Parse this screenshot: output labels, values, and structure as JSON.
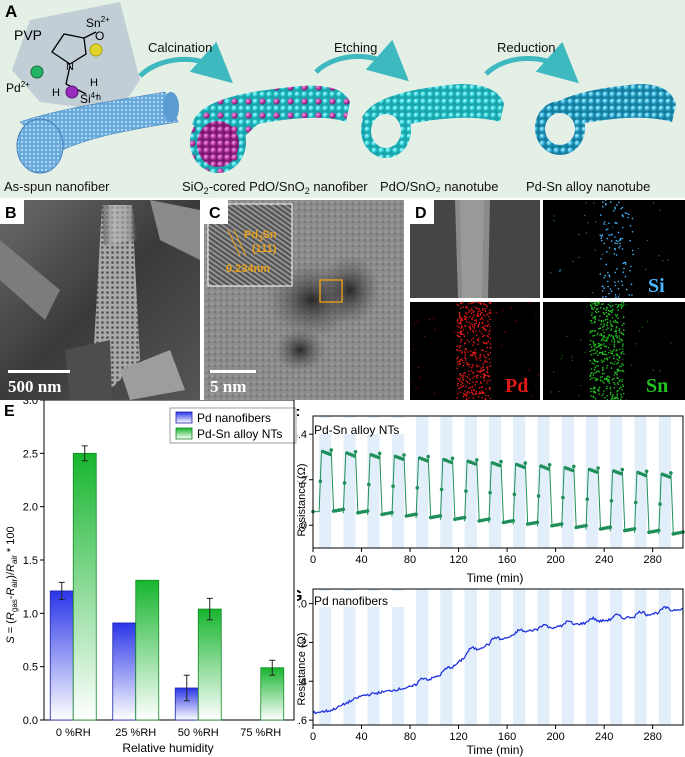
{
  "panel_a": {
    "letter": "A",
    "stages": [
      {
        "label": "As-spun nanofiber"
      },
      {
        "label_pre": "SiO",
        "sub1": "2",
        "label_mid": "-cored PdO/SnO",
        "sub2": "2",
        "label_post": " nanofiber"
      },
      {
        "label": "PdO/SnO₂ nanotube"
      },
      {
        "label": "Pd-Sn alloy nanotube"
      }
    ],
    "arrows": [
      "Calcination",
      "Etching",
      "Reduction"
    ],
    "inset": {
      "pvp": "PVP",
      "sn": "Sn",
      "sn_charge": "2+",
      "pd": "Pd",
      "pd_charge": "2+",
      "si": "Si",
      "si_charge": "4+",
      "o": "O",
      "n": "N",
      "h1": "H",
      "h2": "H",
      "nsub": "n"
    },
    "colors": {
      "bg": "#e4f0e7",
      "fiber_blue": "#5aa6dc",
      "cyan": "#2fd4d8",
      "magenta": "#b03aa6",
      "arrow": "#49c2c6"
    }
  },
  "panel_b": {
    "letter": "B",
    "scale": "500 nm"
  },
  "panel_c": {
    "letter": "C",
    "phase": "Pd₃Sn",
    "phase_base": "Pd",
    "phase_sub": "3",
    "phase_tail": "Sn",
    "plane": "(111)",
    "spacing": "0.234nm",
    "scale": "5 nm"
  },
  "panel_d": {
    "letter": "D",
    "maps": [
      "Si",
      "Pd",
      "Sn"
    ],
    "colors": {
      "Si": "#49b6ff",
      "Pd": "#e01919",
      "Sn": "#21c121"
    }
  },
  "chart_data": [
    {
      "panel": "E",
      "type": "bar",
      "categories": [
        "0 %RH",
        "25 %RH",
        "50 %RH",
        "75 %RH"
      ],
      "series": [
        {
          "name": "Pd nanofibers",
          "values": [
            1.21,
            0.91,
            0.3,
            null
          ],
          "errors": [
            0.08,
            0.0,
            0.12,
            null
          ],
          "color": "#2a35e8"
        },
        {
          "name": "Pd-Sn alloy NTs",
          "values": [
            2.5,
            1.31,
            1.04,
            0.49
          ],
          "errors": [
            0.07,
            0.0,
            0.1,
            0.07
          ],
          "color": "#17b52e"
        }
      ],
      "xlabel": "Relative humidity",
      "ylabel_parts": {
        "s": "S",
        "eq": " = (",
        "r1": "R",
        "r1sub": "gas",
        "minus": "-",
        "r2": "R",
        "r2sub": "air",
        "mid": ")/",
        "r3": "R",
        "r3sub": "air",
        "tail": " * 100"
      },
      "ylim": [
        0,
        3.0
      ],
      "yticks": [
        "0.0",
        "0.5",
        "1.0",
        "1.5",
        "2.0",
        "2.5",
        "3.0"
      ],
      "legend_position": "top-right"
    },
    {
      "panel": "F",
      "type": "line",
      "title": "Pd-Sn alloy NTs",
      "xlabel": "Time (min)",
      "ylabel": "Resistance (Ω)",
      "xlim": [
        0,
        305
      ],
      "ylim": [
        2.9,
        3.48
      ],
      "xticks": [
        "0",
        "40",
        "80",
        "120",
        "160",
        "200",
        "240",
        "280"
      ],
      "yticks": [
        "3.0",
        "3.2",
        "3.4"
      ],
      "color": "#1f8f5a",
      "cycle_period_min": 10,
      "cycle_count": 15,
      "high_start": 3.33,
      "high_end": 3.23,
      "low_start": 3.06,
      "low_end": 2.96
    },
    {
      "panel": "G",
      "type": "line",
      "title": "Pd nanofibers",
      "xlabel": "Time (min)",
      "ylabel": "Resistance (Ω)",
      "xlim": [
        0,
        305
      ],
      "ylim": [
        1.5,
        4.3
      ],
      "xticks": [
        "0",
        "40",
        "80",
        "120",
        "160",
        "200",
        "240",
        "280"
      ],
      "yticks": [
        "1.6",
        "2.4",
        "3.2",
        "4.0"
      ],
      "color": "#2233dd",
      "trend_points": [
        [
          0,
          1.75
        ],
        [
          15,
          1.8
        ],
        [
          40,
          2.1
        ],
        [
          80,
          2.28
        ],
        [
          110,
          2.58
        ],
        [
          130,
          3.0
        ],
        [
          150,
          3.22
        ],
        [
          180,
          3.45
        ],
        [
          210,
          3.55
        ],
        [
          240,
          3.65
        ],
        [
          270,
          3.75
        ],
        [
          305,
          3.9
        ]
      ]
    }
  ],
  "axis_labels": {
    "e": "E",
    "f": "F",
    "g": "G"
  }
}
